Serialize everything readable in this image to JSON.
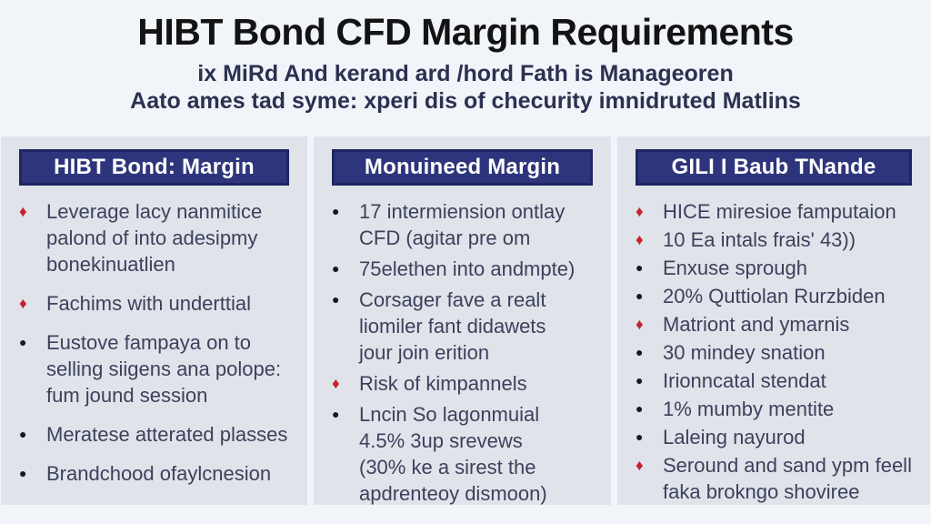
{
  "page": {
    "title": "HIBT Bond CFD Margin Requirements",
    "subtitle_line1": "ix MiRd And kerand ard /hord Fath is Manageoren",
    "subtitle_line2": "Aato ames tad syme: xperi dis of checurity imnidruted Matlins"
  },
  "colors": {
    "page_background": "#f1f4f9",
    "panel_background": "#e0e4ea",
    "header_background": "#2e357c",
    "header_border": "#1f2663",
    "header_text": "#ffffff",
    "title_text": "#131313",
    "subtitle_text": "#2b3150",
    "body_text": "#3c415c",
    "diamond_bullet": "#c42331",
    "dot_bullet": "#15172b"
  },
  "markers": {
    "diamond": "♦",
    "dot": "●"
  },
  "columns": [
    {
      "header": "HIBT Bond: Margin",
      "items": [
        {
          "marker": "diamond",
          "text": "Leverage lacy nanmitice\npalond of into adesipmy\nbonekinuatlien"
        },
        {
          "marker": "diamond",
          "text": "Fachims with underttial"
        },
        {
          "marker": "dot",
          "text": "Eustove fampaya on to\nselling siigens ana polope:\nfum jound session"
        },
        {
          "marker": "dot",
          "text": "Meratese atterated plasses"
        },
        {
          "marker": "dot",
          "text": "Brandchood ofaylcnesion"
        }
      ]
    },
    {
      "header": "Monuineed Margin",
      "items": [
        {
          "marker": "dot",
          "text": "17 intermiension ontlay\nCFD (agitar pre om"
        },
        {
          "marker": "dot",
          "text": "75elethen into andmpte)"
        },
        {
          "marker": "dot",
          "text": "Corsager fave a realt\nliomiler fant didawets\njour join erition"
        },
        {
          "marker": "diamond",
          "text": "Risk of kimpannels"
        },
        {
          "marker": "dot",
          "text": "Lncin So lagonmuial\n4.5% 3up srevews\n(30% ke a sirest the\napdrenteoy dismoon)"
        }
      ]
    },
    {
      "header": "GILI I Baub TNande",
      "items": [
        {
          "marker": "diamond",
          "text": "HICE miresioe famputaion"
        },
        {
          "marker": "diamond",
          "text": "10 Ea intals frais' 43))"
        },
        {
          "marker": "dot",
          "text": "Enxuse sprough"
        },
        {
          "marker": "dot",
          "text": "20% Quttiolan Rurzbiden"
        },
        {
          "marker": "diamond",
          "text": "Matriont and ymarnis"
        },
        {
          "marker": "dot",
          "text": "30 mindey snation"
        },
        {
          "marker": "dot",
          "text": "Irionncatal stendat"
        },
        {
          "marker": "dot",
          "text": "1% mumby mentite"
        },
        {
          "marker": "dot",
          "text": "Laleing nayurod"
        },
        {
          "marker": "diamond",
          "text": "Seround and sand ypm feell\nfaka brokngo shoviree"
        }
      ]
    }
  ]
}
